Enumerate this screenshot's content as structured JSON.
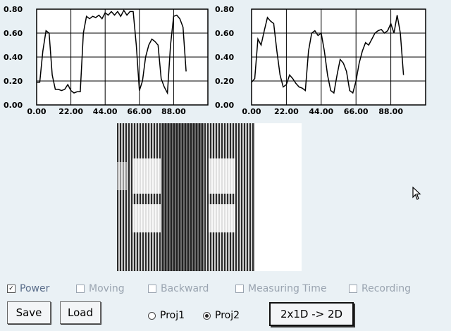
{
  "chart_data": [
    {
      "type": "line",
      "xlim": [
        0,
        110
      ],
      "ylim": [
        0,
        0.8
      ],
      "x_ticks": [
        "0.00",
        "22.00",
        "44.00",
        "66.00",
        "88.00"
      ],
      "y_ticks": [
        "0.00",
        "0.20",
        "0.40",
        "0.60",
        "0.80"
      ],
      "grid": true,
      "series": [
        {
          "x": [
            0,
            2,
            4,
            6,
            8,
            10,
            12,
            14,
            16,
            18,
            20,
            22,
            24,
            26,
            28,
            30,
            32,
            34,
            36,
            38,
            40,
            42,
            44,
            46,
            48,
            50,
            52,
            54,
            56,
            58,
            60,
            62,
            64,
            66,
            68,
            70,
            72,
            74,
            76,
            78,
            80,
            82,
            84,
            86,
            88,
            90,
            92,
            94,
            96
          ],
          "y": [
            0.19,
            0.19,
            0.45,
            0.62,
            0.6,
            0.25,
            0.13,
            0.13,
            0.12,
            0.13,
            0.17,
            0.12,
            0.1,
            0.11,
            0.11,
            0.6,
            0.74,
            0.72,
            0.74,
            0.73,
            0.75,
            0.72,
            0.77,
            0.75,
            0.78,
            0.75,
            0.78,
            0.74,
            0.79,
            0.75,
            0.78,
            0.78,
            0.5,
            0.12,
            0.2,
            0.4,
            0.5,
            0.55,
            0.53,
            0.5,
            0.22,
            0.15,
            0.1,
            0.5,
            0.74,
            0.75,
            0.72,
            0.65,
            0.28
          ]
        }
      ]
    },
    {
      "type": "line",
      "xlim": [
        0,
        110
      ],
      "ylim": [
        0,
        0.8
      ],
      "x_ticks": [
        "0.00",
        "22.00",
        "44.00",
        "66.00",
        "88.00"
      ],
      "y_ticks": [
        "0.00",
        "0.20",
        "0.40",
        "0.60",
        "0.80"
      ],
      "grid": true,
      "series": [
        {
          "x": [
            0,
            2,
            4,
            6,
            8,
            10,
            12,
            14,
            16,
            18,
            20,
            22,
            24,
            26,
            28,
            30,
            32,
            34,
            36,
            38,
            40,
            42,
            44,
            46,
            48,
            50,
            52,
            54,
            56,
            58,
            60,
            62,
            64,
            66,
            68,
            70,
            72,
            74,
            76,
            78,
            80,
            82,
            84,
            86,
            88,
            90,
            92,
            94,
            96
          ],
          "y": [
            0.19,
            0.22,
            0.55,
            0.5,
            0.62,
            0.73,
            0.7,
            0.68,
            0.45,
            0.25,
            0.15,
            0.17,
            0.25,
            0.22,
            0.18,
            0.15,
            0.14,
            0.12,
            0.45,
            0.6,
            0.62,
            0.58,
            0.6,
            0.45,
            0.25,
            0.12,
            0.1,
            0.25,
            0.38,
            0.35,
            0.28,
            0.12,
            0.1,
            0.2,
            0.35,
            0.45,
            0.52,
            0.5,
            0.55,
            0.6,
            0.62,
            0.63,
            0.6,
            0.62,
            0.68,
            0.6,
            0.75,
            0.6,
            0.25
          ]
        }
      ]
    }
  ],
  "checkboxes": {
    "power": "Power",
    "power_check": "✓",
    "moving": "Moving",
    "backward": "Backward",
    "measuring_time": "Measuring Time",
    "recording": "Recording"
  },
  "buttons": {
    "save": "Save",
    "load": "Load",
    "convert": "2x1D -> 2D"
  },
  "radios": {
    "proj1": "Proj1",
    "proj2": "Proj2",
    "selected": "proj2"
  },
  "colors": {
    "background": "#e8f0f4",
    "disabled_text": "#9aa4b0",
    "plot_bg": "#ffffff",
    "line": "#000000"
  }
}
